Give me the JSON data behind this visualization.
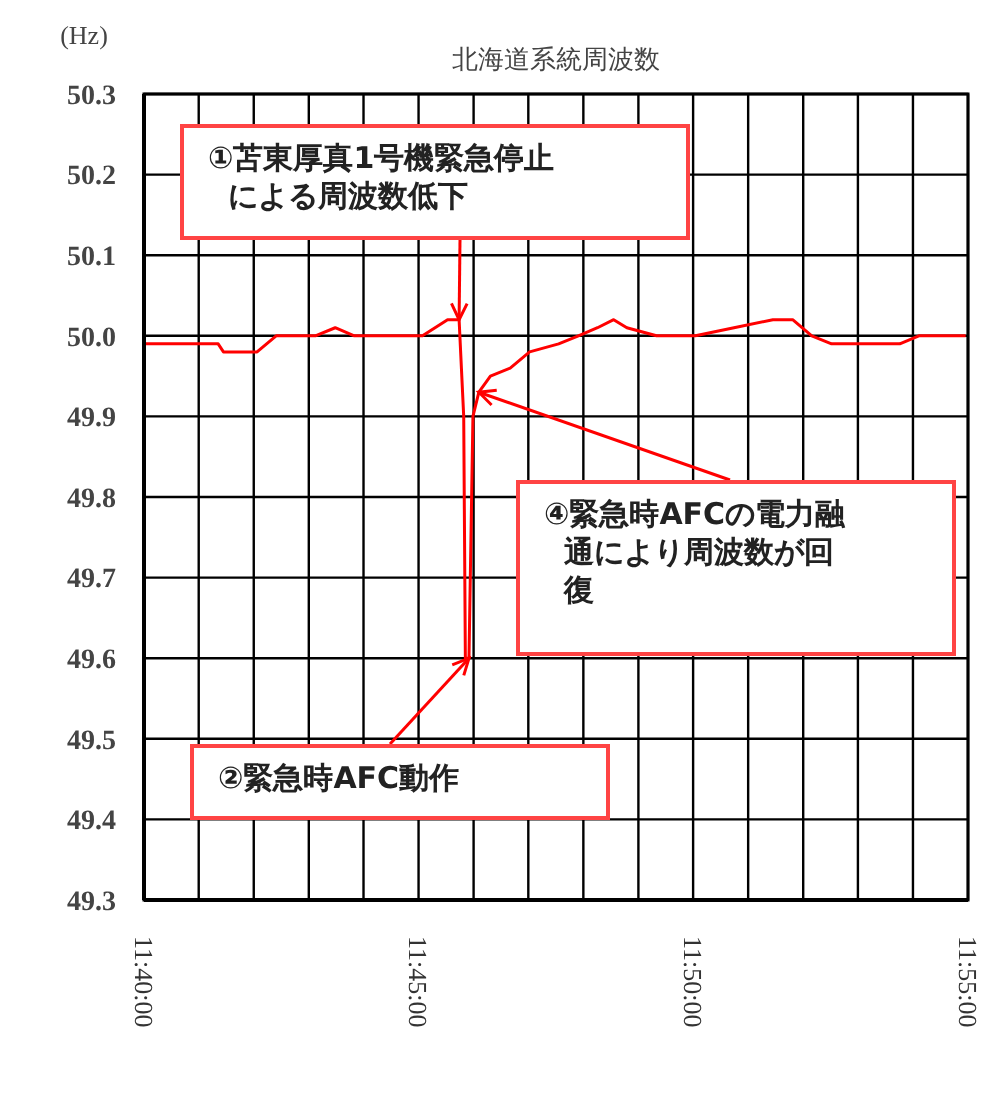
{
  "chart_data": {
    "type": "line",
    "title": "北海道系統周波数",
    "ylabel": "(Hz)",
    "x": [
      11.6667,
      11.6743,
      11.6892,
      11.6908,
      11.698,
      11.701,
      11.7068,
      11.7187,
      11.7247,
      11.7305,
      11.7423,
      11.7512,
      11.7588,
      11.7623,
      11.7637,
      11.7642,
      11.7653,
      11.7665,
      11.7683,
      11.7718,
      11.7778,
      11.7837,
      11.7925,
      11.7985,
      11.8043,
      11.8092,
      11.8132,
      11.8222,
      11.834,
      11.8457,
      11.8575,
      11.8635,
      11.8693,
      11.8753,
      11.8872,
      11.896,
      11.9018,
      11.916
    ],
    "series": [
      {
        "color": "#ff0000",
        "values": [
          49.99,
          49.99,
          49.99,
          49.98,
          49.98,
          49.98,
          50.0,
          50.0,
          50.01,
          50.0,
          50.0,
          50.0,
          50.02,
          50.02,
          49.9,
          49.6,
          49.6,
          49.9,
          49.93,
          49.95,
          49.96,
          49.98,
          49.99,
          50.0,
          50.01,
          50.02,
          50.01,
          50.0,
          50.0,
          50.01,
          50.02,
          50.02,
          50.0,
          49.99,
          49.99,
          49.99,
          50.0,
          50.0
        ]
      }
    ],
    "xlim": [
      11.6667,
      11.9167
    ],
    "xticks": [
      {
        "value": 11.6667,
        "label": "11:40:00"
      },
      {
        "value": 11.6833,
        "label": null
      },
      {
        "value": 11.7,
        "label": null
      },
      {
        "value": 11.7167,
        "label": null
      },
      {
        "value": 11.7333,
        "label": null
      },
      {
        "value": 11.75,
        "label": "11:45:00"
      },
      {
        "value": 11.7667,
        "label": null
      },
      {
        "value": 11.7833,
        "label": null
      },
      {
        "value": 11.8,
        "label": null
      },
      {
        "value": 11.8167,
        "label": null
      },
      {
        "value": 11.8333,
        "label": "11:50:00"
      },
      {
        "value": 11.85,
        "label": null
      },
      {
        "value": 11.8667,
        "label": null
      },
      {
        "value": 11.8833,
        "label": null
      },
      {
        "value": 11.9,
        "label": null
      },
      {
        "value": 11.9167,
        "label": "11:55:00"
      }
    ],
    "ylim": [
      49.3,
      50.3
    ],
    "yticks": [
      49.3,
      49.4,
      49.5,
      49.6,
      49.7,
      49.8,
      49.9,
      {
        "value": 50,
        "label": "50.0"
      },
      50.1,
      50.2,
      50.3
    ],
    "grid": true,
    "marker": "none",
    "line_style": "solid",
    "legend": false,
    "annotations": [
      {
        "text": "①苫東厚真1号機緊急停止による周波数低下",
        "x": 11.7623,
        "y": 50.02
      },
      {
        "text": "②緊急時AFC動作",
        "x": 11.7653,
        "y": 49.6
      },
      {
        "text": "④緊急時AFCの電力融通により周波数が回復",
        "x": 11.7683,
        "y": 49.93
      }
    ]
  }
}
